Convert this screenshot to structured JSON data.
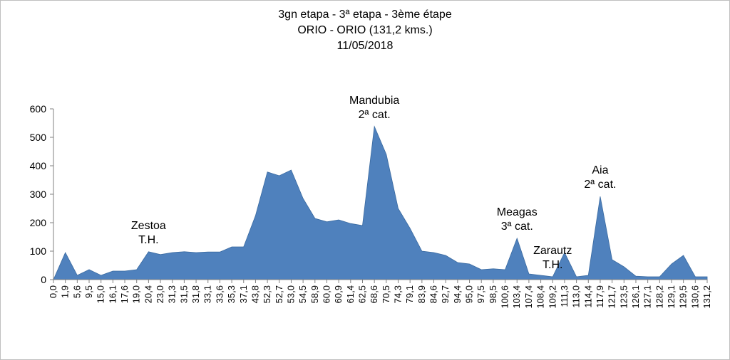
{
  "chart_data": {
    "type": "area",
    "title_lines": [
      "3gn etapa - 3ª etapa - 3ème étape",
      "ORIO - ORIO (131,2 kms.)",
      "11/05/2018"
    ],
    "xlabel": "",
    "ylabel": "",
    "ylim": [
      0,
      600
    ],
    "yticks": [
      0,
      100,
      200,
      300,
      400,
      500,
      600
    ],
    "grid": false,
    "legend": "none",
    "fill_color": "#4f81bd",
    "categories": [
      "0,0",
      "1,9",
      "5,6",
      "9,5",
      "15,0",
      "16,1",
      "17,6",
      "19,0",
      "20,4",
      "23,0",
      "31,3",
      "31,5",
      "31,8",
      "33,1",
      "33,6",
      "35,3",
      "37,1",
      "43,8",
      "52,3",
      "52,7",
      "53,0",
      "54,5",
      "58,9",
      "60,0",
      "60,9",
      "61,4",
      "62,5",
      "68,6",
      "70,5",
      "74,3",
      "79,1",
      "83,9",
      "84,6",
      "92,7",
      "94,4",
      "95,0",
      "97,5",
      "98,5",
      "100,6",
      "103,4",
      "107,4",
      "108,4",
      "109,2",
      "111,3",
      "113,0",
      "114,4",
      "117,9",
      "121,7",
      "123,5",
      "126,1",
      "127,1",
      "128,2",
      "129,1",
      "129,5",
      "130,6",
      "131,2"
    ],
    "values": [
      0,
      95,
      15,
      35,
      15,
      30,
      30,
      35,
      98,
      88,
      95,
      98,
      95,
      97,
      97,
      115,
      115,
      225,
      378,
      365,
      385,
      285,
      215,
      203,
      210,
      197,
      190,
      538,
      440,
      250,
      180,
      100,
      95,
      85,
      60,
      55,
      35,
      38,
      35,
      145,
      20,
      15,
      10,
      95,
      10,
      15,
      292,
      70,
      45,
      12,
      10,
      10,
      55,
      85,
      10,
      10
    ],
    "annotations": [
      {
        "lines": [
          "Zestoa",
          "T.H."
        ],
        "category": "20,4"
      },
      {
        "lines": [
          "Mandubia",
          "2ª cat."
        ],
        "category": "68,6"
      },
      {
        "lines": [
          "Meagas",
          "3ª cat."
        ],
        "category": "103,4"
      },
      {
        "lines": [
          "Zarautz",
          "T.H."
        ],
        "category": "109,2"
      },
      {
        "lines": [
          "Aia",
          "2ª cat."
        ],
        "category": "117,9"
      }
    ]
  }
}
